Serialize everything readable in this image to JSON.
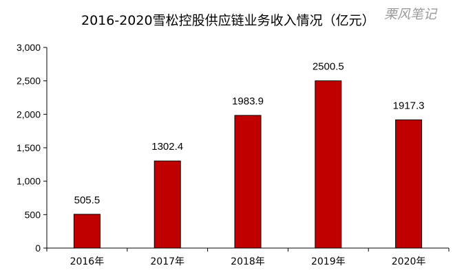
{
  "chart_data": {
    "type": "bar",
    "title": "2016-2020雪松控股供应链业务收入情况（亿元）",
    "watermark": "栗风笔记",
    "categories": [
      "2016年",
      "2017年",
      "2018年",
      "2019年",
      "2020年"
    ],
    "values": [
      505.5,
      1302.4,
      1983.9,
      2500.5,
      1917.3
    ],
    "data_labels": [
      "505.5",
      "1302.4",
      "1983.9",
      "2500.5",
      "1917.3"
    ],
    "yticks": [
      "0",
      "500",
      "1,000",
      "1,500",
      "2,000",
      "2,500",
      "3,000"
    ],
    "ylim": [
      0,
      3000
    ],
    "xlabel": "",
    "ylabel": "",
    "grid": false,
    "legend": "none",
    "colors": {
      "bar_fill": "#C00000",
      "bar_stroke": "#000000",
      "axis": "#000000"
    }
  }
}
